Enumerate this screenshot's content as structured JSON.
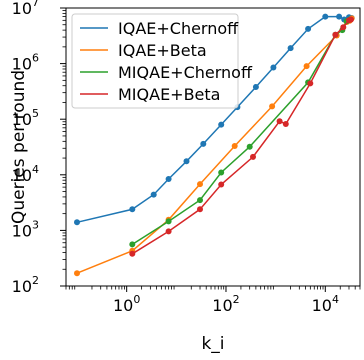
{
  "chart_data": {
    "type": "line",
    "title": "",
    "xlabel": "k_i",
    "ylabel": "Queries per round",
    "xscale": "log",
    "yscale": "log",
    "xlim": [
      0.06,
      50000
    ],
    "ylim": [
      100,
      10000000
    ],
    "x_ticks": [
      {
        "value": 1,
        "base": "10",
        "exp": "0"
      },
      {
        "value": 100,
        "base": "10",
        "exp": "2"
      },
      {
        "value": 10000,
        "base": "10",
        "exp": "4"
      }
    ],
    "y_ticks": [
      {
        "value": 100,
        "base": "10",
        "exp": "2"
      },
      {
        "value": 1000,
        "base": "10",
        "exp": "3"
      },
      {
        "value": 10000,
        "base": "10",
        "exp": "4"
      },
      {
        "value": 100000,
        "base": "10",
        "exp": "5"
      },
      {
        "value": 1000000,
        "base": "10",
        "exp": "6"
      },
      {
        "value": 10000000,
        "base": "10",
        "exp": "7"
      }
    ],
    "grid": false,
    "legend_position": "top-left",
    "series": [
      {
        "name": "IQAE+Chernoff",
        "color": "#1f77b4",
        "x": [
          0.1,
          1.3,
          3.5,
          7,
          16,
          35,
          80,
          170,
          400,
          900,
          2000,
          4500,
          10000,
          19000,
          24000,
          30000,
          34000
        ],
        "y": [
          1400,
          2400,
          4400,
          8400,
          17500,
          36000,
          80000,
          165000,
          380000,
          850000,
          1900000,
          4200000,
          7000000,
          7000000,
          6200000,
          6800000,
          6600000
        ]
      },
      {
        "name": "IQAE+Beta",
        "color": "#ff7f0e",
        "x": [
          0.1,
          1.3,
          7,
          30,
          150,
          850,
          4200,
          17000,
          27000,
          31000,
          34000
        ],
        "y": [
          170,
          430,
          1550,
          6800,
          33000,
          170000,
          900000,
          3200000,
          5600000,
          5900000,
          6500000
        ]
      },
      {
        "name": "MIQAE+Chernoff",
        "color": "#2ca02c",
        "x": [
          1.3,
          7,
          30,
          80,
          300,
          4500,
          16000,
          22000,
          27000,
          31000
        ],
        "y": [
          560,
          1450,
          3500,
          11000,
          32000,
          460000,
          3300000,
          4000000,
          5800000,
          6200000
        ]
      },
      {
        "name": "MIQAE+Beta",
        "color": "#d62728",
        "x": [
          1.3,
          7,
          30,
          80,
          350,
          1200,
          1600,
          5000,
          16000,
          23000,
          30000,
          33000
        ],
        "y": [
          380,
          960,
          2400,
          6700,
          21000,
          92000,
          82000,
          440000,
          3300000,
          4500000,
          6000000,
          6200000
        ]
      }
    ]
  }
}
